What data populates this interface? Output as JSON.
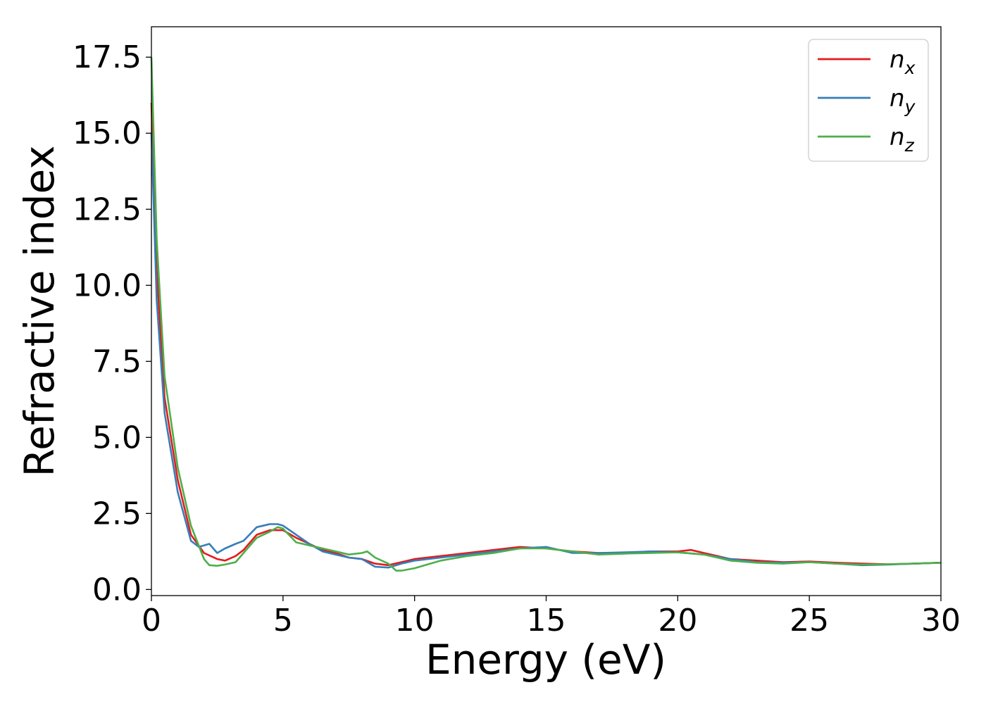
{
  "chart_data": {
    "type": "line",
    "xlabel": "Energy (eV)",
    "ylabel": "Refractive index",
    "xlim": [
      0,
      30
    ],
    "ylim": [
      -0.2,
      18.5
    ],
    "xticks": [
      0,
      5,
      10,
      15,
      20,
      25,
      30
    ],
    "xtick_labels": [
      "0",
      "5",
      "10",
      "15",
      "20",
      "25",
      "30"
    ],
    "yticks": [
      0,
      2.5,
      5,
      7.5,
      10,
      12.5,
      15,
      17.5
    ],
    "ytick_labels": [
      "0.0",
      "2.5",
      "5.0",
      "7.5",
      "10.0",
      "12.5",
      "15.0",
      "17.5"
    ],
    "grid": false,
    "legend_position": "top-right",
    "series": [
      {
        "name": "n",
        "subscript": "x",
        "color": "#e41a1c",
        "x": [
          0,
          0.2,
          0.5,
          1.0,
          1.5,
          2.0,
          2.5,
          2.8,
          3.2,
          3.5,
          4.0,
          4.5,
          5.0,
          5.5,
          6.0,
          6.5,
          7.0,
          7.5,
          8.0,
          8.5,
          9.0,
          9.5,
          10,
          11,
          12,
          13,
          14,
          15,
          16,
          17,
          18,
          19,
          20,
          20.5,
          21,
          22,
          23,
          24,
          25,
          26,
          27,
          28,
          29,
          30
        ],
        "y": [
          16.0,
          10.5,
          6.3,
          3.6,
          1.8,
          1.2,
          1.0,
          0.95,
          1.1,
          1.3,
          1.8,
          1.95,
          1.95,
          1.7,
          1.5,
          1.3,
          1.2,
          1.05,
          1.0,
          0.85,
          0.8,
          0.9,
          1.0,
          1.1,
          1.2,
          1.3,
          1.4,
          1.35,
          1.25,
          1.2,
          1.2,
          1.25,
          1.25,
          1.3,
          1.2,
          1.0,
          0.95,
          0.9,
          0.92,
          0.88,
          0.85,
          0.83,
          0.85,
          0.88
        ]
      },
      {
        "name": "n",
        "subscript": "y",
        "color": "#377eb8",
        "x": [
          0,
          0.2,
          0.5,
          1.0,
          1.5,
          1.8,
          2.0,
          2.2,
          2.5,
          2.8,
          3.2,
          3.5,
          4.0,
          4.5,
          4.8,
          5.0,
          5.5,
          6.0,
          6.5,
          7.0,
          7.5,
          8.0,
          8.5,
          9.0,
          9.5,
          10,
          11,
          12,
          13,
          14,
          15,
          16,
          17,
          18,
          19,
          20,
          21,
          22,
          23,
          24,
          25,
          26,
          27,
          28,
          29,
          30
        ],
        "y": [
          15.0,
          9.5,
          5.8,
          3.2,
          1.6,
          1.4,
          1.45,
          1.5,
          1.2,
          1.35,
          1.5,
          1.6,
          2.05,
          2.15,
          2.15,
          2.1,
          1.8,
          1.5,
          1.25,
          1.15,
          1.05,
          1.0,
          0.75,
          0.72,
          0.85,
          0.95,
          1.05,
          1.15,
          1.25,
          1.35,
          1.4,
          1.2,
          1.2,
          1.22,
          1.25,
          1.22,
          1.15,
          1.0,
          0.9,
          0.88,
          0.9,
          0.85,
          0.8,
          0.82,
          0.85,
          0.88
        ]
      },
      {
        "name": "n",
        "subscript": "z",
        "color": "#4daf4a",
        "x": [
          0,
          0.2,
          0.5,
          1.0,
          1.5,
          2.0,
          2.2,
          2.5,
          2.8,
          3.2,
          3.5,
          4.0,
          4.5,
          4.8,
          5.0,
          5.5,
          6.0,
          6.5,
          7.0,
          7.5,
          8.0,
          8.2,
          8.5,
          9.0,
          9.3,
          9.5,
          10,
          11,
          12,
          13,
          14,
          15,
          16,
          17,
          18,
          19,
          20,
          21,
          22,
          23,
          24,
          25,
          26,
          27,
          28,
          29,
          30
        ],
        "y": [
          17.5,
          11.5,
          7.0,
          4.0,
          2.1,
          1.0,
          0.8,
          0.78,
          0.82,
          0.9,
          1.2,
          1.7,
          1.9,
          2.05,
          2.0,
          1.55,
          1.45,
          1.35,
          1.25,
          1.15,
          1.2,
          1.25,
          1.05,
          0.85,
          0.62,
          0.62,
          0.7,
          0.95,
          1.1,
          1.2,
          1.35,
          1.35,
          1.25,
          1.15,
          1.18,
          1.2,
          1.22,
          1.15,
          0.95,
          0.88,
          0.85,
          0.9,
          0.85,
          0.82,
          0.83,
          0.85,
          0.88
        ]
      }
    ]
  }
}
